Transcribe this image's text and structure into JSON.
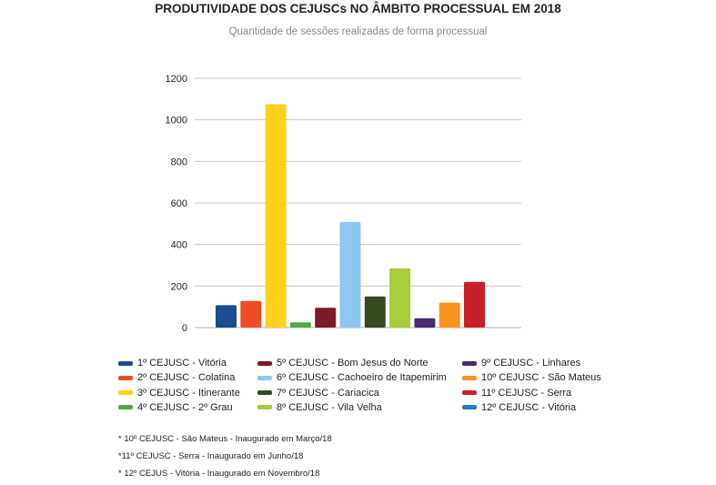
{
  "chart_data": {
    "type": "bar",
    "title": "PRODUTIVIDADE DOS CEJUSCs NO ÂMBITO PROCESSUAL EM 2018",
    "subtitle": "Quantidade de sessões realizadas de forma processual",
    "ylim": [
      0,
      1200
    ],
    "yticks": [
      "0",
      "200",
      "400",
      "600",
      "800",
      "1000",
      "1200"
    ],
    "grid": true,
    "legend_position": "bottom",
    "series": [
      {
        "name": "1º CEJUSC - Vitória",
        "value": 108,
        "color": "#1a4d8f"
      },
      {
        "name": "2º CEJUSC - Colatina",
        "value": 128,
        "color": "#ee4d25"
      },
      {
        "name": "3º CEJUSC - Itinerante",
        "value": 1075,
        "color": "#fdd21f"
      },
      {
        "name": "4º CEJUSC - 2º Grau",
        "value": 25,
        "color": "#55a845"
      },
      {
        "name": "5º CEJUSC - Bom Jesus do Norte",
        "value": 95,
        "color": "#7b1b2a"
      },
      {
        "name": "6º CEJUSC - Cachoeiro de Itapemirim",
        "value": 508,
        "color": "#8ec7ef"
      },
      {
        "name": "7º CEJUSC - Cariacica",
        "value": 150,
        "color": "#354a22"
      },
      {
        "name": "8º CEJUSC - Vila Velha",
        "value": 285,
        "color": "#a8cc3a"
      },
      {
        "name": "9º CEJUSC - Linhares",
        "value": 45,
        "color": "#4b2b6b"
      },
      {
        "name": "10º CEJUSC - São Mateus",
        "value": 120,
        "color": "#f7941d"
      },
      {
        "name": "11º CEJUSC - Serra",
        "value": 220,
        "color": "#c8202a"
      },
      {
        "name": "12º CEJUSC - Vitória",
        "value": 0,
        "color": "#1e7fc1"
      }
    ]
  },
  "notes": [
    "* 10º CEJUSC - São Mateus - Inaugurado em Março/18",
    "*11º CEJUSC - Serra - Inaugurado em Junho/18",
    "* 12º CEJUS - Vitória - Inaugurado em Novembro/18"
  ]
}
